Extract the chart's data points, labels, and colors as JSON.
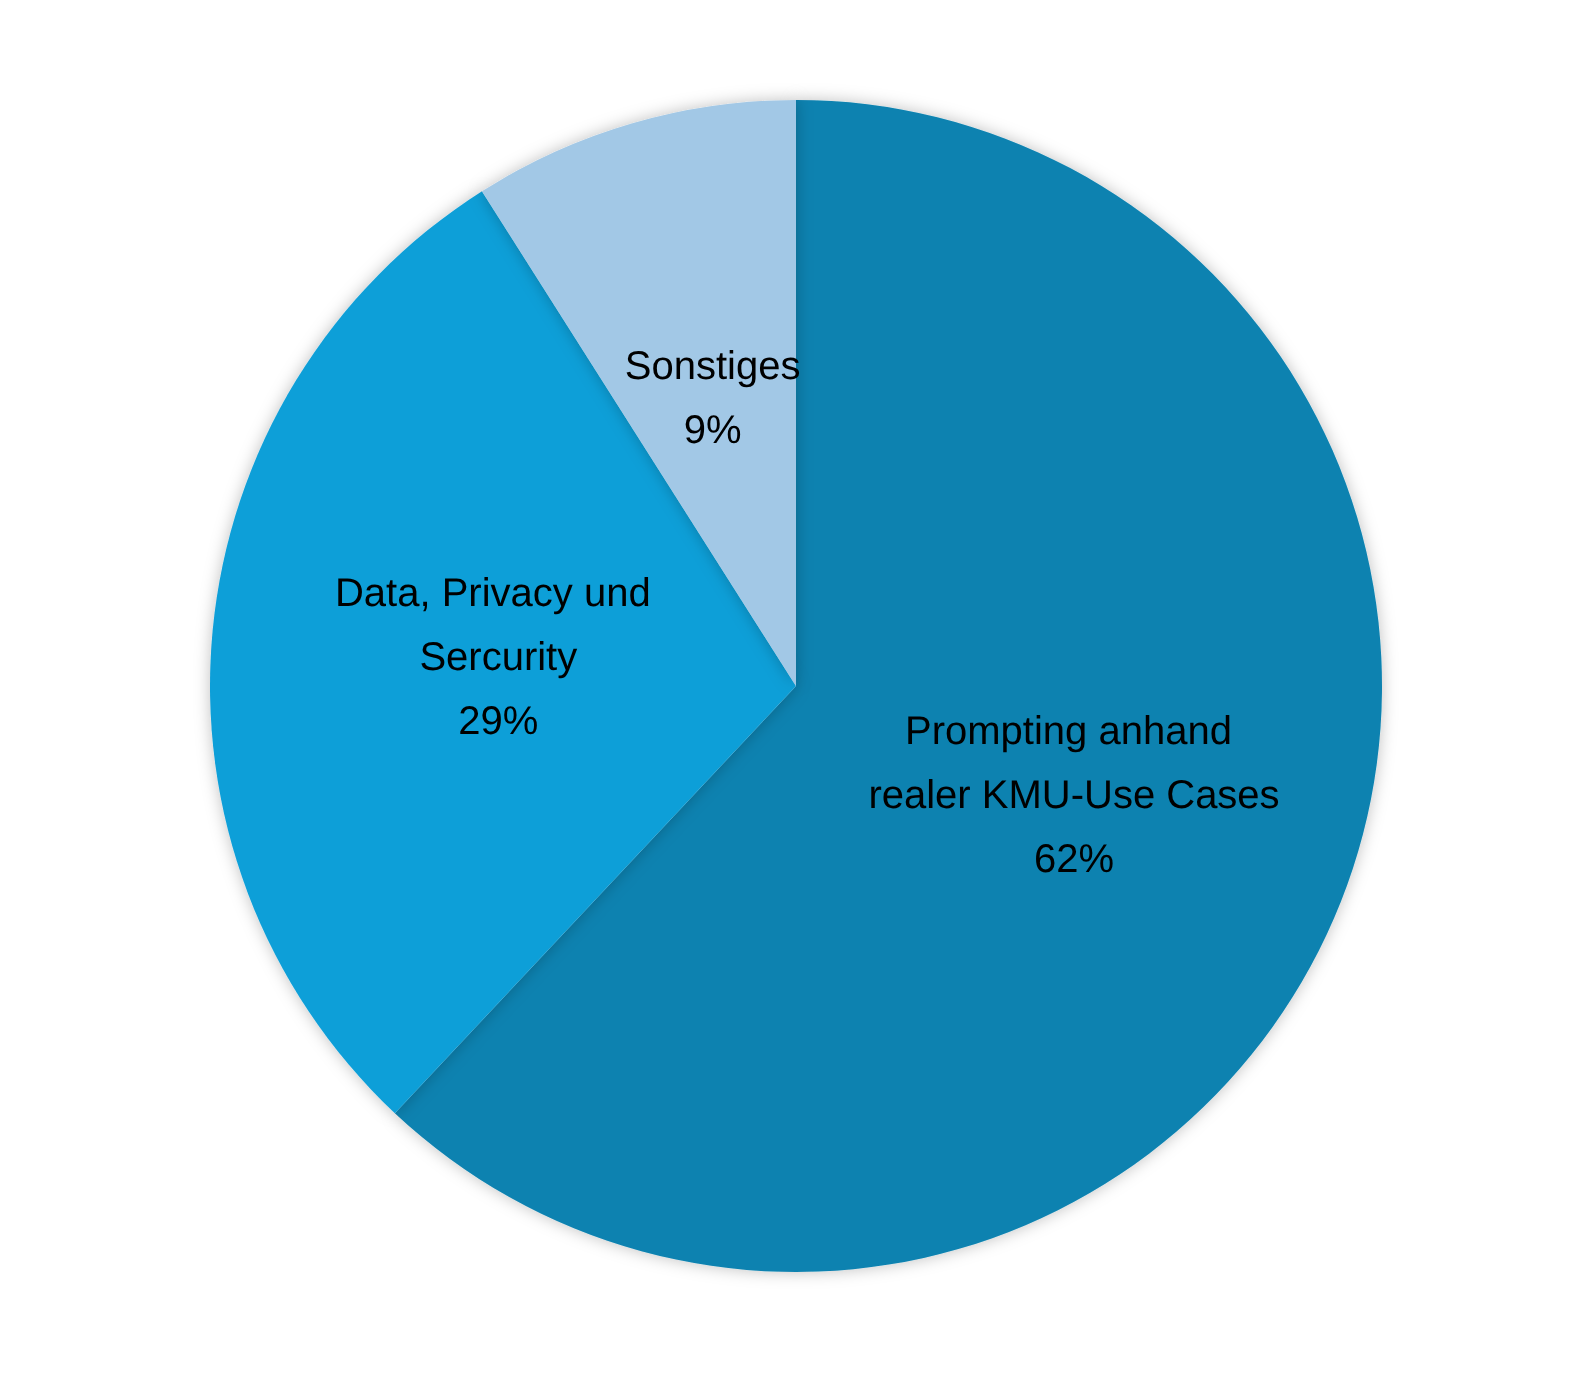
{
  "chart_data": {
    "type": "pie",
    "categories": [
      "Prompting anhand realer KMU-Use Cases",
      "Data, Privacy und Sercurity",
      "Sonstiges"
    ],
    "values": [
      62,
      29,
      9
    ],
    "colors": [
      "#0b82b0",
      "#119fd8",
      "#a2c8e6"
    ],
    "value_labels": [
      "62%",
      "29%",
      "9%"
    ],
    "legend": false
  }
}
